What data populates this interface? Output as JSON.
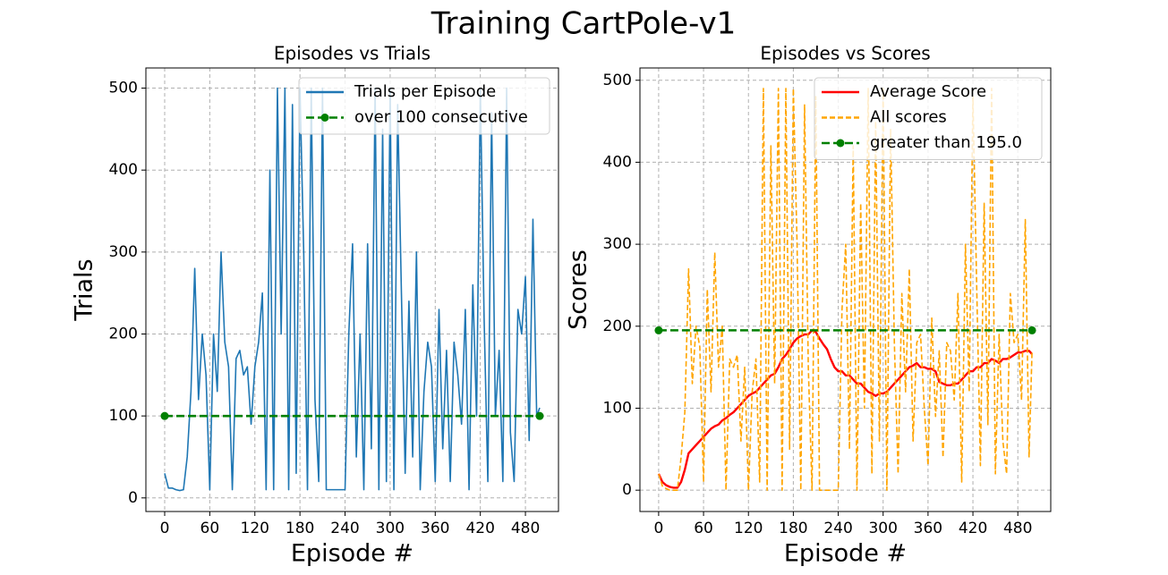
{
  "title": "Training CartPole-v1",
  "chart_data": [
    {
      "type": "line",
      "title": "Episodes vs Trials",
      "xlabel": "Episode #",
      "ylabel": "Trials",
      "x": [
        0,
        5,
        10,
        15,
        20,
        25,
        30,
        35,
        40,
        45,
        50,
        55,
        60,
        65,
        70,
        75,
        80,
        85,
        90,
        95,
        100,
        105,
        110,
        115,
        120,
        125,
        130,
        135,
        140,
        145,
        150,
        155,
        160,
        165,
        170,
        175,
        180,
        185,
        190,
        195,
        200,
        205,
        210,
        215,
        220,
        225,
        230,
        235,
        240,
        245,
        250,
        255,
        260,
        265,
        270,
        275,
        280,
        285,
        290,
        295,
        300,
        305,
        310,
        315,
        320,
        325,
        330,
        335,
        340,
        345,
        350,
        355,
        360,
        365,
        370,
        375,
        380,
        385,
        390,
        395,
        400,
        405,
        410,
        415,
        420,
        425,
        430,
        435,
        440,
        445,
        450,
        455,
        460,
        465,
        470,
        475,
        480,
        485,
        490,
        495,
        499
      ],
      "series": [
        {
          "name": "Trials per Episode",
          "color": "#1f77b4",
          "dashed": false,
          "markers": false,
          "values": [
            30,
            12,
            12,
            10,
            9,
            10,
            50,
            130,
            280,
            120,
            200,
            150,
            10,
            200,
            130,
            300,
            190,
            160,
            10,
            170,
            180,
            150,
            160,
            90,
            160,
            190,
            250,
            10,
            400,
            10,
            500,
            200,
            500,
            10,
            480,
            30,
            500,
            300,
            10,
            500,
            120,
            20,
            500,
            10,
            10,
            10,
            10,
            10,
            10,
            200,
            310,
            50,
            200,
            10,
            310,
            60,
            500,
            10,
            450,
            20,
            500,
            10,
            480,
            250,
            30,
            240,
            50,
            300,
            10,
            130,
            190,
            160,
            20,
            230,
            60,
            180,
            20,
            190,
            150,
            90,
            230,
            10,
            260,
            100,
            500,
            220,
            20,
            470,
            100,
            180,
            20,
            500,
            80,
            20,
            230,
            200,
            270,
            70,
            340,
            100,
            110
          ]
        },
        {
          "name": "over 100 consecutive",
          "color": "#008000",
          "dashed": true,
          "markers": true,
          "x": [
            0,
            499
          ],
          "values": [
            100,
            100
          ]
        }
      ],
      "xlim": [
        -25,
        524
      ],
      "ylim": [
        -16.6,
        524.6
      ],
      "xticks": [
        0,
        60,
        120,
        180,
        240,
        300,
        360,
        420,
        480
      ],
      "yticks": [
        0,
        100,
        200,
        300,
        400,
        500
      ],
      "grid": true,
      "legend": "upper right"
    },
    {
      "type": "line",
      "title": "Episodes vs Scores",
      "xlabel": "Episode #",
      "ylabel": "Scores",
      "x": [
        0,
        5,
        10,
        15,
        20,
        25,
        30,
        35,
        40,
        45,
        50,
        55,
        60,
        65,
        70,
        75,
        80,
        85,
        90,
        95,
        100,
        105,
        110,
        115,
        120,
        125,
        130,
        135,
        140,
        145,
        150,
        155,
        160,
        165,
        170,
        175,
        180,
        185,
        190,
        195,
        200,
        205,
        210,
        215,
        220,
        225,
        230,
        235,
        240,
        245,
        250,
        255,
        260,
        265,
        270,
        275,
        280,
        285,
        290,
        295,
        300,
        305,
        310,
        315,
        320,
        325,
        330,
        335,
        340,
        345,
        350,
        355,
        360,
        365,
        370,
        375,
        380,
        385,
        390,
        395,
        400,
        405,
        410,
        415,
        420,
        425,
        430,
        435,
        440,
        445,
        450,
        455,
        460,
        465,
        470,
        475,
        480,
        485,
        490,
        495,
        499
      ],
      "series": [
        {
          "name": "Average Score",
          "color": "#ff0000",
          "dashed": false,
          "markers": false,
          "values": [
            20,
            10,
            6,
            4,
            3,
            3,
            10,
            25,
            45,
            50,
            55,
            60,
            65,
            70,
            75,
            78,
            80,
            85,
            88,
            92,
            95,
            100,
            105,
            110,
            115,
            118,
            120,
            125,
            130,
            135,
            140,
            142,
            150,
            160,
            165,
            172,
            180,
            185,
            188,
            190,
            190,
            195,
            193,
            185,
            178,
            172,
            160,
            150,
            145,
            145,
            140,
            140,
            135,
            130,
            130,
            125,
            120,
            118,
            115,
            118,
            118,
            120,
            125,
            130,
            135,
            140,
            145,
            150,
            152,
            155,
            150,
            150,
            148,
            148,
            145,
            132,
            130,
            128,
            128,
            130,
            130,
            135,
            140,
            145,
            145,
            150,
            150,
            155,
            155,
            160,
            158,
            155,
            160,
            160,
            162,
            165,
            168,
            168,
            170,
            170,
            166
          ]
        },
        {
          "name": "All scores",
          "color": "#ffa500",
          "dashed": true,
          "markers": false,
          "values": [
            20,
            5,
            2,
            0,
            0,
            0,
            40,
            95,
            270,
            130,
            200,
            175,
            10,
            245,
            120,
            290,
            150,
            200,
            0,
            160,
            150,
            165,
            60,
            150,
            0,
            120,
            160,
            10,
            490,
            0,
            420,
            130,
            490,
            0,
            490,
            50,
            490,
            300,
            0,
            470,
            150,
            0,
            480,
            0,
            0,
            0,
            0,
            0,
            0,
            220,
            300,
            50,
            420,
            0,
            350,
            100,
            490,
            20,
            450,
            60,
            490,
            0,
            440,
            180,
            20,
            240,
            120,
            270,
            60,
            180,
            190,
            100,
            30,
            210,
            90,
            170,
            40,
            180,
            170,
            110,
            240,
            10,
            300,
            120,
            480,
            250,
            30,
            350,
            80,
            490,
            20,
            190,
            60,
            20,
            240,
            180,
            190,
            110,
            330,
            40,
            170
          ]
        },
        {
          "name": "greater than 195.0",
          "color": "#008000",
          "dashed": true,
          "markers": true,
          "x": [
            0,
            499
          ],
          "values": [
            195,
            195
          ]
        }
      ],
      "xlim": [
        -25,
        524
      ],
      "ylim": [
        -26,
        515
      ],
      "xticks": [
        0,
        60,
        120,
        180,
        240,
        300,
        360,
        420,
        480
      ],
      "yticks": [
        0,
        100,
        200,
        300,
        400,
        500
      ],
      "grid": true,
      "legend": "upper right"
    }
  ]
}
